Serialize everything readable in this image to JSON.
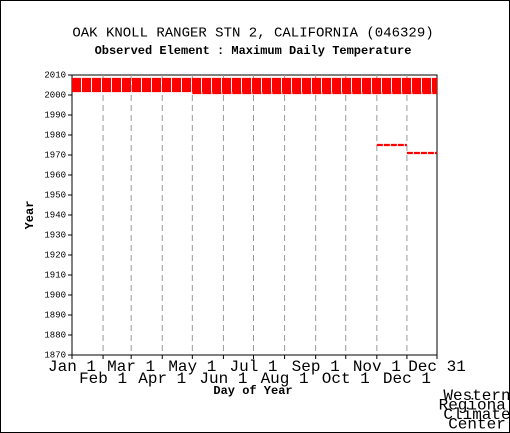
{
  "chart_data": {
    "type": "range",
    "title": "OAK KNOLL RANGER STN 2, CALIFORNIA   (046329)",
    "subtitle": "Observed Element : Maximum Daily Temperature",
    "x_label": "Day of Year",
    "y_label": "Year",
    "credit": [
      "Western",
      "Regional",
      "Climate",
      "Center"
    ],
    "color": "#ff0000",
    "segments": [
      {
        "year": 2008,
        "start": 1,
        "end": 365
      },
      {
        "year": 2007,
        "start": 1,
        "end": 365
      },
      {
        "year": 2006,
        "start": 1,
        "end": 365
      },
      {
        "year": 2005,
        "start": 1,
        "end": 365
      },
      {
        "year": 2004,
        "start": 1,
        "end": 365
      },
      {
        "year": 2003,
        "start": 1,
        "end": 365
      },
      {
        "year": 2002,
        "start": 1,
        "end": 365
      },
      {
        "year": 2001,
        "start": 121,
        "end": 365
      },
      {
        "year": 1975,
        "start": 305,
        "end": 335
      },
      {
        "year": 1971,
        "start": 335,
        "end": 365
      }
    ],
    "xlim": [
      1,
      365
    ],
    "xticks": [
      {
        "value": 1,
        "label": "Jan 1"
      },
      {
        "value": 32,
        "label": "Feb 1"
      },
      {
        "value": 60,
        "label": "Mar 1"
      },
      {
        "value": 91,
        "label": "Apr 1"
      },
      {
        "value": 121,
        "label": "May 1"
      },
      {
        "value": 152,
        "label": "Jun 1"
      },
      {
        "value": 182,
        "label": "Jul 1"
      },
      {
        "value": 213,
        "label": "Aug 1"
      },
      {
        "value": 244,
        "label": "Sep 1"
      },
      {
        "value": 274,
        "label": "Oct 1"
      },
      {
        "value": 305,
        "label": "Nov 1"
      },
      {
        "value": 335,
        "label": "Dec 1"
      },
      {
        "value": 365,
        "label": "Dec 31"
      }
    ],
    "ylim": [
      1870,
      2010
    ],
    "yticks": [
      1870,
      1880,
      1890,
      1900,
      1910,
      1920,
      1930,
      1940,
      1950,
      1960,
      1970,
      1980,
      1990,
      2000,
      2010
    ],
    "grid": true
  }
}
